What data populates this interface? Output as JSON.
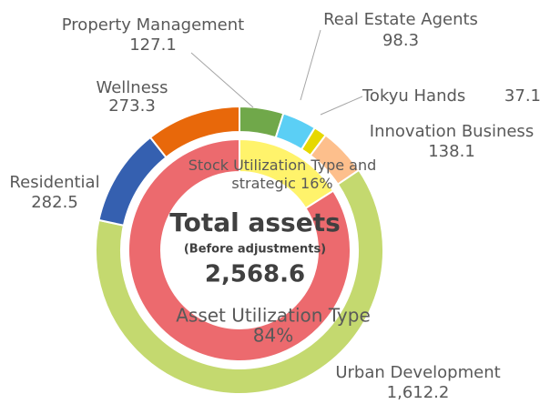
{
  "chart_data": {
    "type": "donut",
    "categories": [
      "Property Management",
      "Real Estate Agents",
      "Tokyu Hands",
      "Innovation Business",
      "Urban Development",
      "Residential",
      "Wellness"
    ],
    "values": [
      127.1,
      98.3,
      37.1,
      138.1,
      1612.2,
      282.5,
      273.3
    ],
    "value_labels": [
      "127.1",
      "98.3",
      "37.1",
      "138.1",
      "1,612.2",
      "282.5",
      "273.3"
    ],
    "colors": [
      "#70a84a",
      "#5bcff5",
      "#e6d800",
      "#fdbf8c",
      "#c4d96f",
      "#3560b0",
      "#e8680a"
    ],
    "inner": {
      "categories": [
        "Stock Utilization Type and strategic",
        "Asset Utilization Type"
      ],
      "values": [
        16,
        84
      ],
      "value_labels": [
        "16%",
        "84%"
      ],
      "colors": [
        "#fff36b",
        "#ec6a6e"
      ]
    },
    "total": {
      "label": "Total assets",
      "note": "(Before adjustments)",
      "value": 2568.6,
      "value_label": "2,568.6"
    }
  }
}
